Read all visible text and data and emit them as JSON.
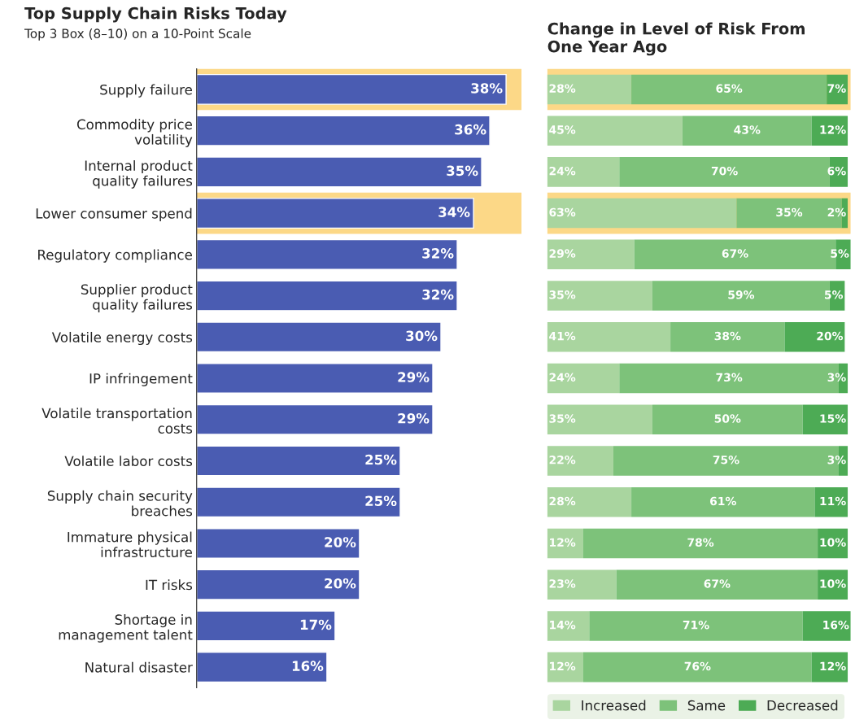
{
  "chart_data": [
    {
      "type": "bar",
      "orientation": "horizontal",
      "title": "Top Supply Chain Risks Today",
      "subtitle": "Top 3 Box (8–10) on a 10-Point Scale",
      "categories": [
        "Supply failure",
        "Commodity price\nvolatility",
        "Internal product\nquality failures",
        "Lower consumer spend",
        "Regulatory compliance",
        "Supplier product\nquality failures",
        "Volatile energy costs",
        "IP infringement",
        "Volatile transportation\ncosts",
        "Volatile labor costs",
        "Supply chain security\nbreaches",
        "Immature physical\ninfrastructure",
        "IT risks",
        "Shortage in\nmanagement talent",
        "Natural disaster"
      ],
      "values": [
        38,
        36,
        35,
        34,
        32,
        32,
        30,
        29,
        29,
        25,
        25,
        20,
        20,
        17,
        16
      ],
      "color": "#4a5cb2",
      "value_labels": [
        "38%",
        "36%",
        "35%",
        "34%",
        "32%",
        "32%",
        "30%",
        "29%",
        "29%",
        "25%",
        "25%",
        "20%",
        "20%",
        "17%",
        "16%"
      ],
      "tick_labels": "y",
      "bands": [
        {
          "axis": "y",
          "from": "Supply failure",
          "to": "Supply failure",
          "color": "#fcd887"
        },
        {
          "axis": "y",
          "from": "Lower consumer spend",
          "to": "Lower consumer spend",
          "color": "#fcd887"
        }
      ]
    },
    {
      "type": "bar",
      "orientation": "horizontal",
      "stacked": true,
      "title": "Change in Level of Risk From\nOne Year Ago",
      "categories": [
        "Supply failure",
        "Commodity price\nvolatility",
        "Internal product\nquality failures",
        "Lower consumer spend",
        "Regulatory compliance",
        "Supplier product\nquality failures",
        "Volatile energy costs",
        "IP infringement",
        "Volatile transportation\ncosts",
        "Volatile labor costs",
        "Supply chain security\nbreaches",
        "Immature physical\ninfrastructure",
        "IT risks",
        "Shortage in\nmanagement talent",
        "Natural disaster"
      ],
      "tick_labels": false,
      "legend": "bottom right",
      "series": [
        {
          "name": "Increased",
          "color": "#a9d59f",
          "values": [
            28,
            45,
            24,
            63,
            29,
            35,
            41,
            24,
            35,
            22,
            28,
            12,
            23,
            14,
            12
          ],
          "value_labels": [
            "28%",
            "45%",
            "24%",
            "63%",
            "29%",
            "35%",
            "41%",
            "24%",
            "35%",
            "22%",
            "28%",
            "12%",
            "23%",
            "14%",
            "12%"
          ]
        },
        {
          "name": "Same",
          "color": "#7dc27a",
          "values": [
            65,
            43,
            70,
            35,
            67,
            59,
            38,
            73,
            50,
            75,
            61,
            78,
            67,
            71,
            76
          ],
          "value_labels": [
            "65%",
            "43%",
            "70%",
            "35%",
            "67%",
            "59%",
            "38%",
            "73%",
            "50%",
            "75%",
            "61%",
            "78%",
            "67%",
            "71%",
            "76%"
          ]
        },
        {
          "name": "Decreased",
          "color": "#4dab55",
          "values": [
            7,
            12,
            6,
            2,
            5,
            5,
            20,
            3,
            15,
            3,
            11,
            10,
            10,
            16,
            12
          ],
          "value_labels": [
            "7%",
            "12%",
            "6%",
            "2%",
            "5%",
            "5%",
            "20%",
            "3%",
            "15%",
            "3%",
            "11%",
            "10%",
            "10%",
            "16%",
            "12%"
          ]
        }
      ],
      "bands": [
        {
          "axis": "y",
          "from": "Supply failure",
          "to": "Supply failure",
          "color": "#fcd887"
        },
        {
          "axis": "y",
          "from": "Lower consumer spend",
          "to": "Lower consumer spend",
          "color": "#fcd887"
        }
      ]
    }
  ]
}
